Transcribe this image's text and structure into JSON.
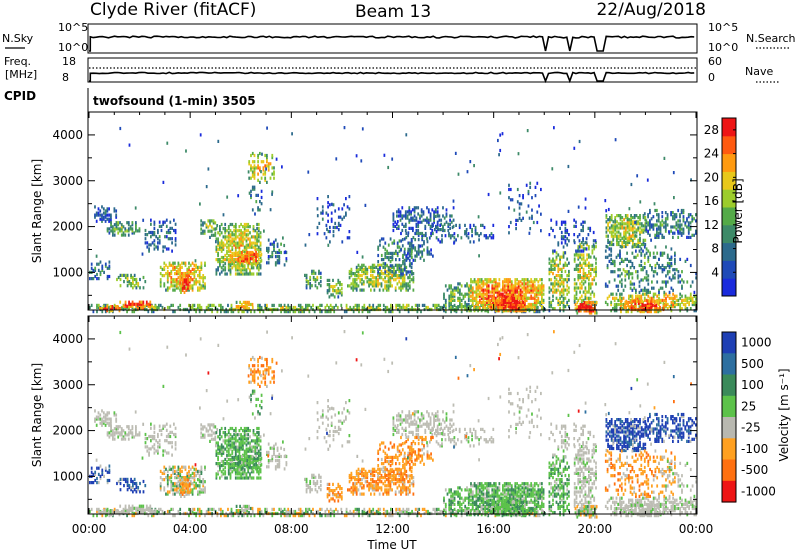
{
  "header": {
    "station": "Clyde River (fitACF)",
    "beam": "Beam 13",
    "date": "22/Aug/2018"
  },
  "noise_panel": {
    "left_label": "N.Sky",
    "right_label": "N.Search",
    "tick_top": "10^5",
    "tick_bottom": "10^0"
  },
  "freq_panel": {
    "left_label_1": "Freq.",
    "left_label_2": "[MHz]",
    "right_label": "Nave",
    "left_ticks": [
      "18",
      "8"
    ],
    "right_ticks": [
      "60",
      "0"
    ]
  },
  "cpid": {
    "label": "CPID",
    "text": "twofsound (1-min) 3505"
  },
  "chart_data": [
    {
      "type": "heatmap",
      "name": "power",
      "ylabel": "Slant Range [km]",
      "ylim": [
        180,
        4500
      ],
      "yticks": [
        "1000",
        "2000",
        "3000",
        "4000"
      ],
      "xlim": [
        "00:00",
        "24:00"
      ],
      "colorbar": {
        "label": "Power [dB]",
        "ticks": [
          "4",
          "8",
          "12",
          "16",
          "20",
          "24",
          "28"
        ],
        "range": [
          0,
          30
        ],
        "colors": [
          "#1a2bdc",
          "#1f4ab8",
          "#2c6a8c",
          "#3d8a68",
          "#54aa48",
          "#9ccc2c",
          "#e8c81a",
          "#ff9a10",
          "#ff5a10",
          "#ee1515"
        ]
      }
    },
    {
      "type": "heatmap",
      "name": "velocity",
      "ylabel": "Slant Range [km]",
      "ylim": [
        180,
        4500
      ],
      "yticks": [
        "1000",
        "2000",
        "3000",
        "4000"
      ],
      "xlim": [
        "00:00",
        "24:00"
      ],
      "xticks": [
        "00:00",
        "04:00",
        "08:00",
        "12:00",
        "16:00",
        "20:00",
        "00:00"
      ],
      "xlabel": "Time UT",
      "colorbar": {
        "label": "Velocity [m s⁻¹]",
        "ticks": [
          "1000",
          "500",
          "100",
          "25",
          "-25",
          "-100",
          "-500",
          "-1000"
        ],
        "colors": [
          "#1e3fb4",
          "#2d6fa0",
          "#3a8a5a",
          "#5cc24a",
          "#b8b8b0",
          "#ffa020",
          "#ff7010",
          "#ee1515"
        ]
      }
    }
  ],
  "colors": {
    "ground_scatter": "#bdbdb4",
    "frame": "#000000"
  }
}
